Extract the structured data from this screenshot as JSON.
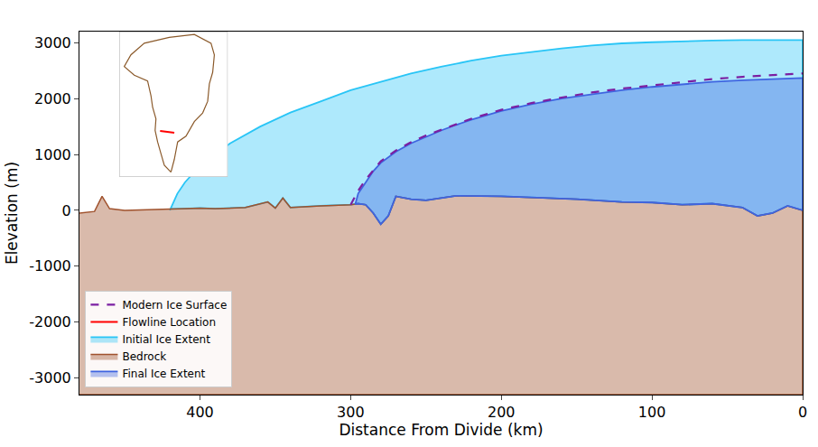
{
  "chart_data": [
    {
      "type": "area",
      "xlabel": "Distance From Divide (km)",
      "ylabel": "Elevation (m)",
      "xlim": [
        480,
        0
      ],
      "xticks": [
        0,
        100,
        200,
        300,
        400
      ],
      "ylim": [
        -3300,
        3200
      ],
      "yticks": [
        -3000,
        -2000,
        -1000,
        0,
        1000,
        2000,
        3000
      ],
      "grid": false,
      "legend": "lower left",
      "series": [
        {
          "name": "Modern Ice Surface",
          "type": "line",
          "line_style": "dashed",
          "color": "#7b1fa2",
          "x": [
            300,
            295,
            290,
            285,
            280,
            270,
            260,
            250,
            240,
            220,
            200,
            180,
            160,
            140,
            120,
            100,
            80,
            60,
            40,
            20,
            0
          ],
          "values": [
            100,
            350,
            550,
            720,
            880,
            1070,
            1220,
            1340,
            1440,
            1640,
            1800,
            1920,
            2020,
            2110,
            2180,
            2240,
            2300,
            2350,
            2390,
            2420,
            2450
          ]
        },
        {
          "name": "Initial Ice Extent",
          "type": "fill_between",
          "color": "#29c5f6",
          "x": [
            420,
            415,
            410,
            400,
            390,
            380,
            360,
            340,
            320,
            300,
            280,
            260,
            240,
            220,
            200,
            180,
            160,
            140,
            120,
            100,
            80,
            60,
            40,
            20,
            0
          ],
          "values": [
            0,
            300,
            500,
            800,
            1000,
            1200,
            1500,
            1750,
            1950,
            2150,
            2300,
            2450,
            2570,
            2680,
            2770,
            2840,
            2900,
            2950,
            2990,
            3010,
            3030,
            3040,
            3050,
            3050,
            3050
          ]
        },
        {
          "name": "Bedrock",
          "type": "area",
          "color": "#a0522d",
          "x": [
            480,
            470,
            465,
            460,
            450,
            430,
            410,
            400,
            390,
            370,
            355,
            350,
            345,
            340,
            320,
            300,
            295,
            290,
            285,
            280,
            275,
            270,
            260,
            250,
            230,
            200,
            180,
            150,
            120,
            100,
            80,
            60,
            40,
            30,
            20,
            10,
            0
          ],
          "values": [
            -50,
            -20,
            250,
            30,
            0,
            20,
            30,
            40,
            30,
            50,
            150,
            40,
            220,
            50,
            80,
            100,
            120,
            100,
            -50,
            -250,
            -100,
            250,
            200,
            180,
            260,
            250,
            230,
            200,
            150,
            140,
            100,
            120,
            50,
            -100,
            -50,
            80,
            0
          ]
        },
        {
          "name": "Final Ice Extent",
          "type": "fill_between",
          "color": "#3f64e0",
          "x": [
            297,
            295,
            290,
            285,
            280,
            270,
            260,
            250,
            240,
            230,
            220,
            200,
            180,
            160,
            140,
            120,
            100,
            80,
            60,
            40,
            20,
            0
          ],
          "values": [
            100,
            300,
            500,
            700,
            850,
            1050,
            1200,
            1320,
            1430,
            1530,
            1620,
            1780,
            1900,
            2000,
            2080,
            2150,
            2210,
            2260,
            2300,
            2330,
            2350,
            2370
          ]
        }
      ]
    },
    {
      "type": "map",
      "tick_labels": false,
      "xlim": [
        -75,
        -10
      ],
      "ylim": [
        59,
        84
      ],
      "outline": {
        "color": "#8b5a2b",
        "x": [
          -44,
          -48,
          -50,
          -52,
          -53.5,
          -53,
          -55,
          -56,
          -58,
          -66,
          -72,
          -68,
          -60,
          -45,
          -30,
          -20,
          -18,
          -19,
          -21,
          -22,
          -25,
          -30,
          -35,
          -40,
          -42,
          -44
        ],
        "y": [
          59.8,
          61,
          63,
          65,
          67,
          69,
          71,
          73,
          75.5,
          76.5,
          78,
          80,
          82,
          83,
          83.5,
          82,
          80,
          77,
          75,
          72,
          70,
          68.5,
          66,
          65,
          62,
          59.8
        ]
      },
      "series": [
        {
          "name": "Flowline Location",
          "type": "line",
          "line_style": "solid",
          "color": "#ff0000",
          "x": [
            -50.5,
            -46,
            -42
          ],
          "values": [
            66.9,
            66.8,
            66.6
          ]
        }
      ]
    }
  ]
}
